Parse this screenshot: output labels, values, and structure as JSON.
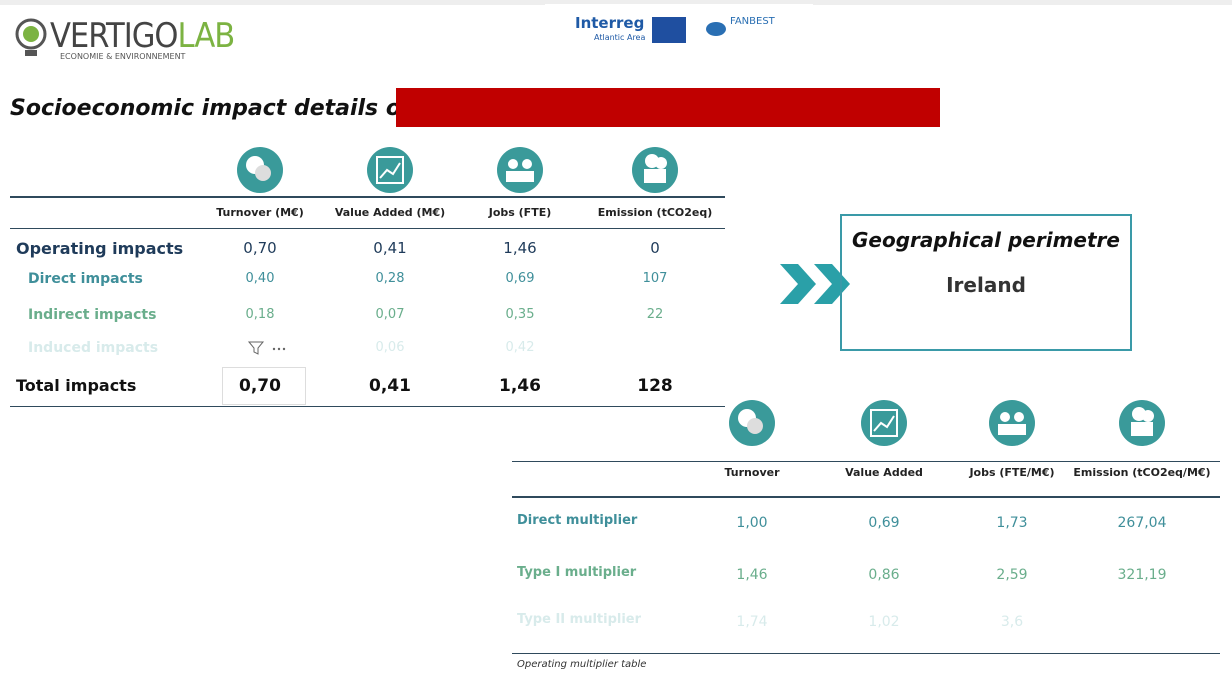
{
  "header": {
    "logo_main": "VERTIGO",
    "logo_accent": "LAB",
    "logo_tagline": "ECONOMIE & ENVIRONNEMENT",
    "partner_1": "Interreg",
    "partner_1_sub": "Atlantic Area",
    "partner_2": "FANBEST"
  },
  "title": "Socioeconomic impact details of",
  "impacts_table": {
    "columns": [
      "Turnover (M€)",
      "Value Added (M€)",
      "Jobs (FTE)",
      "Emission (tCO2eq)"
    ],
    "rows": [
      {
        "label": "Operating impacts",
        "values": [
          "0,70",
          "0,41",
          "1,46",
          "0"
        ]
      },
      {
        "label": "Direct impacts",
        "values": [
          "0,40",
          "0,28",
          "0,69",
          "107"
        ]
      },
      {
        "label": "Indirect impacts",
        "values": [
          "0,18",
          "0,07",
          "0,35",
          "22"
        ]
      },
      {
        "label": "Induced impacts",
        "values": [
          null,
          "0,06",
          "0,42",
          null
        ]
      },
      {
        "label": "Total impacts",
        "values": [
          "0,70",
          "0,41",
          "1,46",
          "128"
        ]
      }
    ]
  },
  "geography": {
    "title": "Geographical perimetre",
    "value": "Ireland"
  },
  "multiplier_table": {
    "columns": [
      "Turnover",
      "Value Added",
      "Jobs (FTE/M€)",
      "Emission (tCO2eq/M€)"
    ],
    "rows": [
      {
        "label": "Direct multiplier",
        "values": [
          "1,00",
          "0,69",
          "1,73",
          "267,04"
        ]
      },
      {
        "label": "Type I multiplier",
        "values": [
          "1,46",
          "0,86",
          "2,59",
          "321,19"
        ]
      },
      {
        "label": "Type II multiplier",
        "values": [
          "1,74",
          "1,02",
          "3,6",
          null
        ]
      }
    ],
    "caption": "Operating multiplier table"
  }
}
